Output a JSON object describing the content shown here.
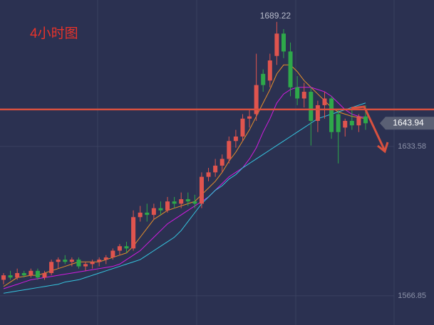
{
  "chart_data": {
    "type": "candlestick",
    "title": "4小时图",
    "up_color": "#e0544e",
    "down_color": "#2ea84a",
    "ylim": [
      1553.8,
      1699.0
    ],
    "yticks": [
      1566.85,
      1633.58
    ],
    "grid": true,
    "level": 1650.1,
    "level_color": "#d9513f",
    "open": [
      1574,
      1576,
      1575,
      1577,
      1576,
      1578,
      1575,
      1577,
      1582,
      1583,
      1582,
      1583,
      1580,
      1581,
      1582,
      1583,
      1584,
      1587,
      1589,
      1588,
      1602,
      1604,
      1603,
      1606,
      1605,
      1609,
      1608,
      1610,
      1609,
      1608,
      1620,
      1622,
      1625,
      1628,
      1636,
      1638,
      1646,
      1648,
      1666,
      1663,
      1674,
      1684,
      1676,
      1660,
      1655,
      1658,
      1645,
      1652,
      1655,
      1648,
      1642,
      1645,
      1643,
      1647
    ],
    "high": [
      1577,
      1578,
      1579,
      1578,
      1579,
      1579,
      1578,
      1583,
      1584,
      1585,
      1584,
      1584,
      1582,
      1583,
      1584,
      1585,
      1588,
      1590,
      1591,
      1605,
      1607,
      1608,
      1608,
      1609,
      1611,
      1611,
      1613,
      1613,
      1612,
      1622,
      1624,
      1628,
      1630,
      1638,
      1641,
      1648,
      1650,
      1675,
      1668,
      1675,
      1689.22,
      1686,
      1680,
      1665,
      1662,
      1660,
      1654,
      1658,
      1656,
      1650,
      1646,
      1650,
      1648,
      1652
    ],
    "low": [
      1572,
      1574,
      1574,
      1575,
      1575,
      1574,
      1574,
      1576,
      1579,
      1581,
      1580,
      1579,
      1578,
      1579,
      1580,
      1581,
      1583,
      1585,
      1586,
      1587,
      1600,
      1600,
      1601,
      1603,
      1604,
      1606,
      1606,
      1607,
      1606,
      1606,
      1618,
      1620,
      1622,
      1626,
      1633,
      1636,
      1642,
      1645,
      1658,
      1660,
      1670,
      1673,
      1656,
      1652,
      1651,
      1634,
      1640,
      1646,
      1637,
      1626,
      1638,
      1641,
      1640,
      1641
    ],
    "close": [
      1576,
      1575,
      1577,
      1576,
      1578,
      1575,
      1577,
      1582,
      1583,
      1582,
      1583,
      1580,
      1581,
      1582,
      1583,
      1584,
      1587,
      1589,
      1588,
      1602,
      1604,
      1603,
      1606,
      1605,
      1609,
      1608,
      1610,
      1609,
      1608,
      1620,
      1622,
      1625,
      1628,
      1636,
      1638,
      1646,
      1647,
      1661,
      1661,
      1672,
      1684,
      1676,
      1660,
      1655,
      1658,
      1645,
      1652,
      1655,
      1640,
      1640,
      1645,
      1643,
      1647,
      1643.94
    ],
    "lines": [
      {
        "color": "#e8902a",
        "values": [
          1571,
          1573,
          1575,
          1575.5,
          1576,
          1576,
          1577,
          1578,
          1579,
          1580,
          1581,
          1582,
          1582,
          1582,
          1582,
          1583,
          1584,
          1585,
          1586,
          1589,
          1593,
          1597,
          1601,
          1603,
          1605,
          1606,
          1607,
          1608,
          1609,
          1612,
          1615,
          1618,
          1622,
          1627,
          1631,
          1636,
          1641,
          1647,
          1653,
          1659,
          1666,
          1670,
          1670,
          1667,
          1663,
          1660,
          1657,
          1654,
          1651,
          1649,
          1648,
          1647,
          1646.5,
          1646
        ]
      },
      {
        "color": "#d21ce0",
        "values": [
          1570,
          1571,
          1572,
          1573,
          1574,
          1574.5,
          1575,
          1575.5,
          1576,
          1576.5,
          1577,
          1577.5,
          1578,
          1578.5,
          1579,
          1579.5,
          1580,
          1581,
          1583,
          1585,
          1587,
          1590,
          1593,
          1596,
          1599,
          1601,
          1603,
          1605,
          1607,
          1609,
          1611,
          1614,
          1617,
          1620,
          1622,
          1624,
          1628,
          1633,
          1640,
          1646,
          1653,
          1657,
          1659,
          1660,
          1660,
          1660,
          1659,
          1658,
          1656,
          1653,
          1650,
          1648,
          1647,
          1646.5
        ]
      },
      {
        "color": "#35c6e0",
        "values": [
          1568,
          1568.5,
          1569,
          1569.5,
          1570,
          1570.5,
          1571,
          1571.5,
          1572,
          1573,
          1573.5,
          1574,
          1575,
          1576,
          1577,
          1578,
          1579,
          1580,
          1581,
          1582,
          1583,
          1585,
          1587,
          1589,
          1591,
          1593,
          1596,
          1600,
          1604,
          1608,
          1611,
          1614,
          1616,
          1619,
          1621,
          1624,
          1626,
          1628,
          1630,
          1632,
          1634,
          1636,
          1638,
          1640,
          1642,
          1644,
          1646,
          1647,
          1648,
          1649,
          1650,
          1651,
          1652,
          1653
        ]
      }
    ]
  }
}
